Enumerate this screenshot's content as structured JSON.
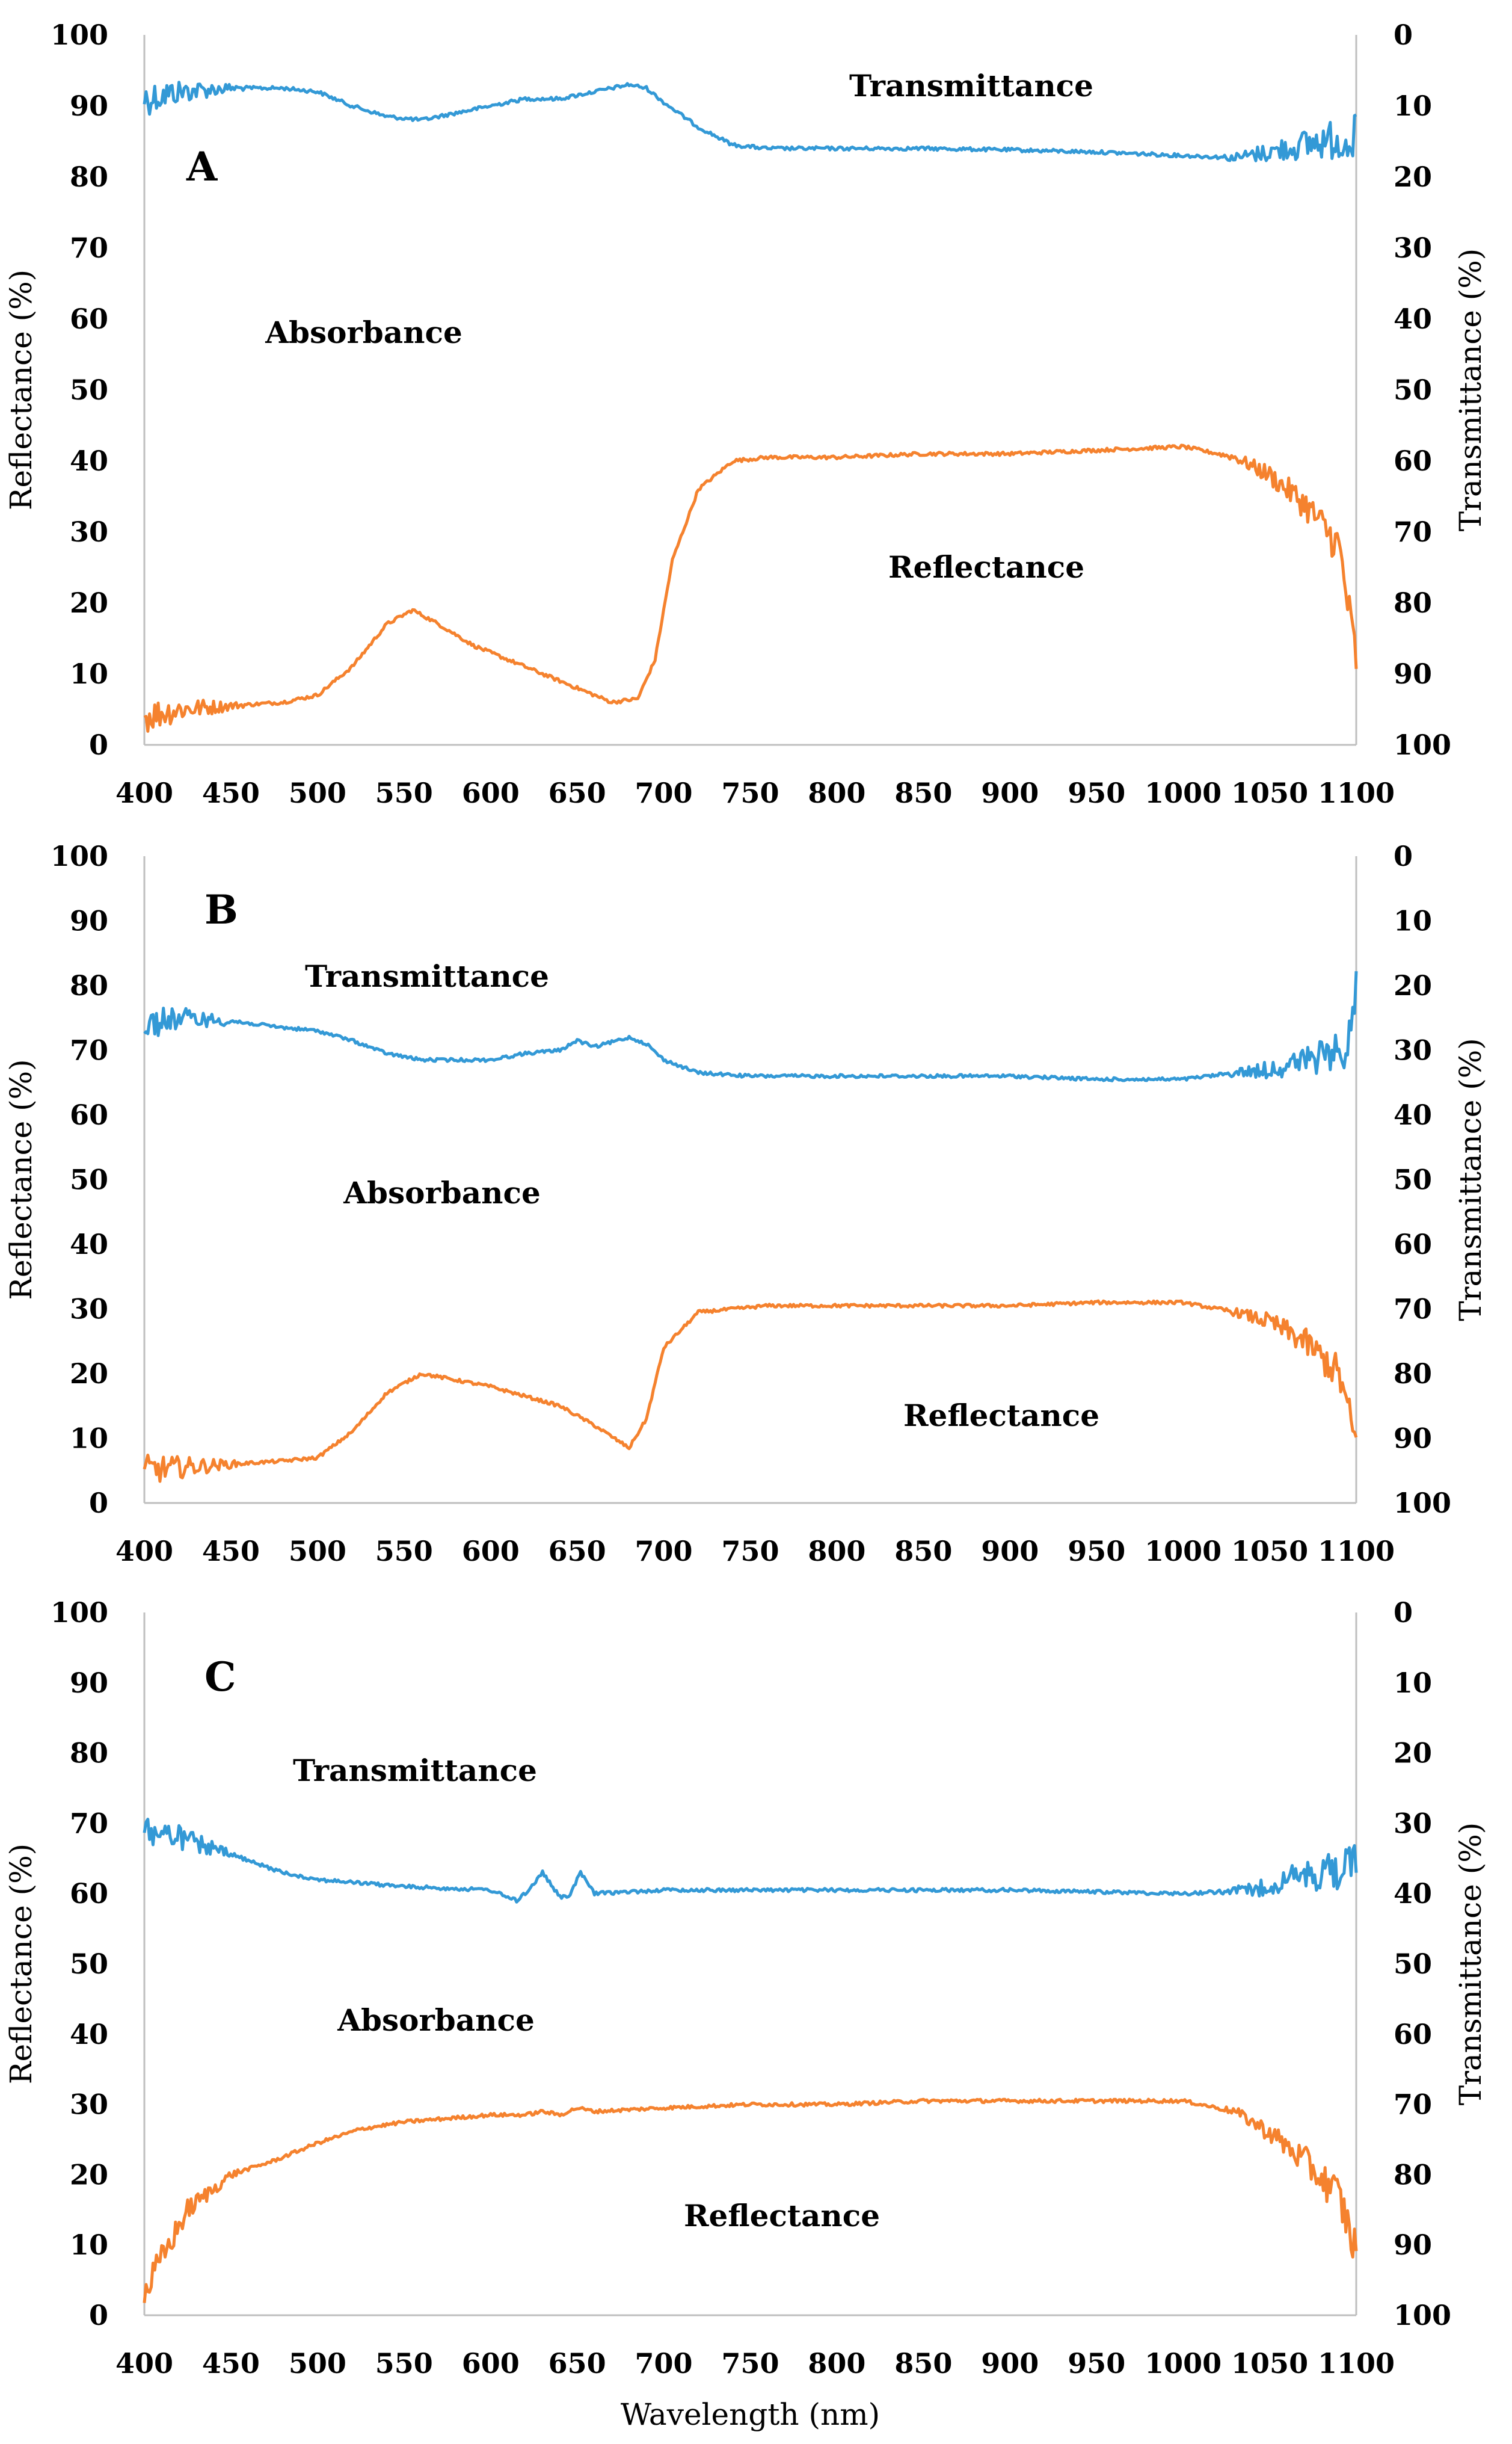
{
  "chart_data": [
    {
      "type": "line",
      "panel_label": "A",
      "x_range": [
        400,
        1100
      ],
      "x_ticks": [
        "400",
        "450",
        "500",
        "550",
        "600",
        "650",
        "700",
        "750",
        "800",
        "850",
        "900",
        "950",
        "1000",
        "1050",
        "1100"
      ],
      "left_axis": {
        "label": "Reflectance (%)",
        "range": [
          0,
          100
        ],
        "ticks": [
          "0",
          "10",
          "20",
          "30",
          "40",
          "50",
          "60",
          "70",
          "80",
          "90",
          "100"
        ]
      },
      "right_axis": {
        "label": "Transmittance (%)",
        "range": [
          100,
          0
        ],
        "inverted": true,
        "ticks": [
          "0",
          "10",
          "20",
          "30",
          "40",
          "50",
          "60",
          "70",
          "80",
          "90",
          "100"
        ]
      },
      "annotations": [
        "Transmittance",
        "Absorbance",
        "Reflectance"
      ],
      "series": [
        {
          "name": "Transmittance",
          "axis": "right",
          "color": "#3399d6",
          "x": [
            400,
            420,
            450,
            480,
            500,
            520,
            540,
            560,
            580,
            600,
            620,
            640,
            660,
            680,
            690,
            700,
            720,
            740,
            760,
            800,
            850,
            900,
            950,
            1000,
            1030,
            1050,
            1080,
            1100
          ],
          "y": [
            9,
            8,
            7.5,
            7.5,
            8,
            10,
            11.5,
            12,
            11,
            10,
            9,
            9,
            8,
            7,
            7.5,
            9.5,
            13,
            15.5,
            16,
            16,
            16,
            16.2,
            16.5,
            17,
            17.3,
            16.5,
            15,
            14.5
          ]
        },
        {
          "name": "Reflectance",
          "axis": "left",
          "color": "#f5822e",
          "x": [
            400,
            420,
            450,
            480,
            500,
            520,
            540,
            555,
            570,
            590,
            610,
            630,
            650,
            670,
            685,
            695,
            705,
            720,
            740,
            760,
            800,
            850,
            900,
            950,
            1000,
            1030,
            1050,
            1070,
            1090,
            1100
          ],
          "y": [
            4,
            5,
            5.5,
            6,
            7,
            11,
            17,
            19,
            17,
            14,
            12,
            10,
            8,
            6,
            6.5,
            12,
            26,
            36,
            40,
            40.5,
            40.5,
            41,
            41,
            41.5,
            42,
            40.5,
            38,
            34,
            28,
            12
          ]
        }
      ]
    },
    {
      "type": "line",
      "panel_label": "B",
      "x_range": [
        400,
        1100
      ],
      "x_ticks": [
        "400",
        "450",
        "500",
        "550",
        "600",
        "650",
        "700",
        "750",
        "800",
        "850",
        "900",
        "950",
        "1000",
        "1050",
        "1100"
      ],
      "left_axis": {
        "label": "Reflectance (%)",
        "range": [
          0,
          100
        ],
        "ticks": [
          "0",
          "10",
          "20",
          "30",
          "40",
          "50",
          "60",
          "70",
          "80",
          "90",
          "100"
        ]
      },
      "right_axis": {
        "label": "Transmittance (%)",
        "range": [
          100,
          0
        ],
        "inverted": true,
        "ticks": [
          "0",
          "10",
          "20",
          "30",
          "40",
          "50",
          "60",
          "70",
          "80",
          "90",
          "100"
        ]
      },
      "annotations": [
        "Transmittance",
        "Absorbance",
        "Reflectance"
      ],
      "series": [
        {
          "name": "Transmittance",
          "axis": "right",
          "color": "#3399d6",
          "x": [
            400,
            420,
            450,
            480,
            500,
            520,
            540,
            560,
            580,
            600,
            620,
            640,
            650,
            660,
            680,
            690,
            700,
            720,
            750,
            800,
            850,
            900,
            950,
            1000,
            1030,
            1050,
            1080,
            1095,
            1100
          ],
          "y": [
            26,
            25,
            25.5,
            26.5,
            27,
            28.5,
            30.5,
            31.5,
            31.5,
            31.5,
            30.5,
            30,
            28.5,
            29.5,
            28,
            29,
            31.5,
            33.5,
            34,
            34,
            34,
            34,
            34.5,
            34.5,
            33.5,
            33,
            31,
            30,
            20
          ]
        },
        {
          "name": "Reflectance",
          "axis": "left",
          "color": "#f5822e",
          "x": [
            400,
            420,
            450,
            480,
            500,
            520,
            540,
            560,
            580,
            600,
            620,
            640,
            660,
            680,
            690,
            700,
            720,
            740,
            760,
            800,
            850,
            900,
            950,
            1000,
            1030,
            1050,
            1070,
            1090,
            1100
          ],
          "y": [
            5,
            5.5,
            6,
            6.5,
            7,
            11,
            17,
            20,
            19,
            18,
            16.5,
            15,
            12,
            8.5,
            13,
            24,
            29.5,
            30,
            30.5,
            30.5,
            30.5,
            30.5,
            31,
            31,
            29.5,
            28,
            25,
            20,
            9
          ]
        }
      ]
    },
    {
      "type": "line",
      "panel_label": "C",
      "x_range": [
        400,
        1100
      ],
      "x_ticks": [
        "400",
        "450",
        "500",
        "550",
        "600",
        "650",
        "700",
        "750",
        "800",
        "850",
        "900",
        "950",
        "1000",
        "1050",
        "1100"
      ],
      "x_label": "Wavelength (nm)",
      "left_axis": {
        "label": "Reflectance (%)",
        "range": [
          0,
          100
        ],
        "ticks": [
          "0",
          "10",
          "20",
          "30",
          "40",
          "50",
          "60",
          "70",
          "80",
          "90",
          "100"
        ]
      },
      "right_axis": {
        "label": "Transmittance (%)",
        "range": [
          100,
          0
        ],
        "inverted": true,
        "ticks": [
          "0",
          "10",
          "20",
          "30",
          "40",
          "50",
          "60",
          "70",
          "80",
          "90",
          "100"
        ]
      },
      "annotations": [
        "Transmittance",
        "Absorbance",
        "Reflectance"
      ],
      "series": [
        {
          "name": "Transmittance",
          "axis": "right",
          "color": "#3399d6",
          "x": [
            400,
            420,
            450,
            480,
            500,
            550,
            600,
            615,
            622,
            630,
            640,
            645,
            652,
            660,
            700,
            800,
            900,
            1000,
            1040,
            1060,
            1080,
            1100
          ],
          "y": [
            31,
            32,
            34.5,
            37,
            38,
            39,
            39.5,
            41,
            39.5,
            37,
            40.5,
            40.5,
            37,
            40,
            39.5,
            39.5,
            39.5,
            40,
            39.5,
            38,
            37,
            36
          ]
        },
        {
          "name": "Reflectance",
          "axis": "left",
          "color": "#f5822e",
          "x": [
            400,
            410,
            425,
            450,
            475,
            500,
            525,
            550,
            575,
            600,
            620,
            630,
            640,
            650,
            660,
            700,
            750,
            800,
            850,
            900,
            950,
            1000,
            1030,
            1050,
            1070,
            1090,
            1100
          ],
          "y": [
            3,
            8,
            15,
            20,
            22,
            24.5,
            26.5,
            27.5,
            28,
            28.5,
            28.5,
            29,
            28.5,
            29.5,
            29,
            29.5,
            30,
            30,
            30.5,
            30.5,
            30.5,
            30.5,
            29,
            26,
            22,
            17,
            9
          ]
        }
      ]
    }
  ]
}
